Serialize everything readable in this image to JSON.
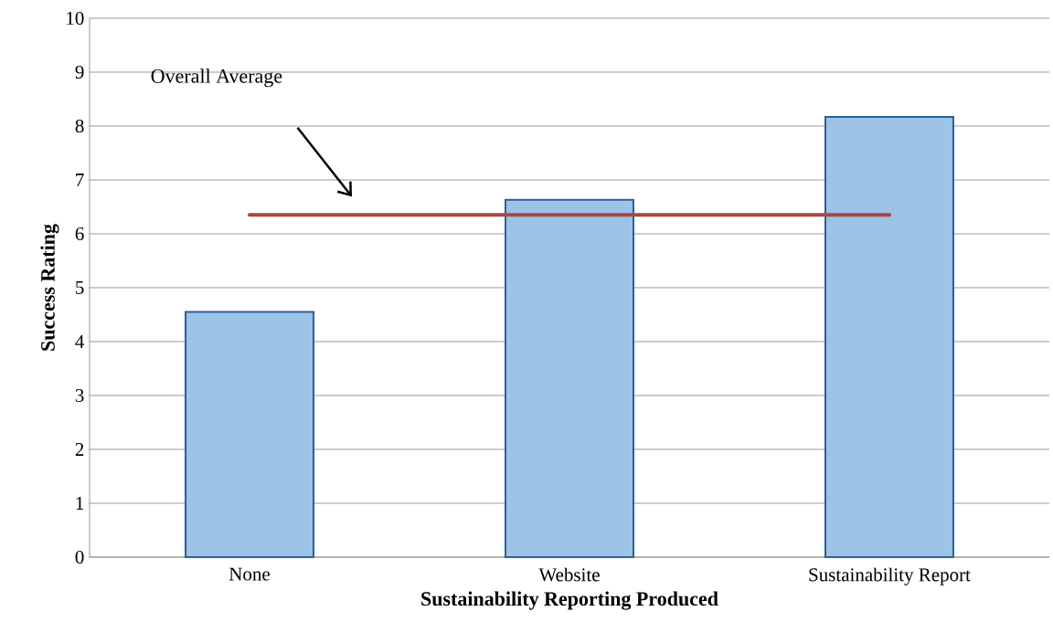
{
  "chart_data": {
    "type": "bar",
    "xlabel": "Sustainability Reporting Produced",
    "ylabel": "Success Rating",
    "categories": [
      "None",
      "Website",
      "Sustainability Report"
    ],
    "series": [
      {
        "color": "#9dc3e6",
        "values": [
          4.55,
          6.63,
          8.17
        ]
      },
      {
        "type": "line",
        "color": "#a9483f",
        "values": [
          6.35,
          6.35,
          6.35
        ]
      }
    ],
    "ylim": [
      0,
      10
    ],
    "yticks": [
      0,
      1,
      2,
      3,
      4,
      5,
      6,
      7,
      8,
      9,
      10
    ],
    "grid": "y",
    "annotations": [
      "Overall Average"
    ]
  }
}
